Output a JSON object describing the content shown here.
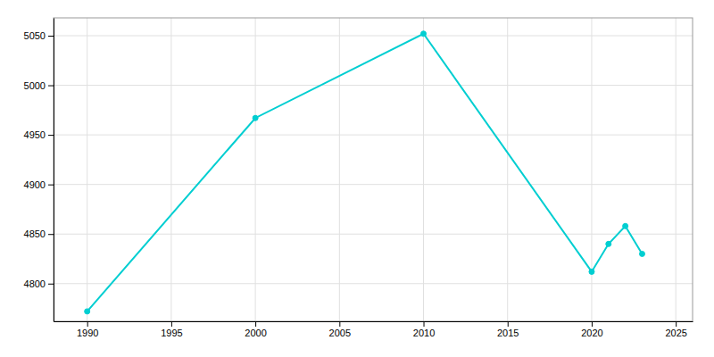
{
  "chart_data": {
    "type": "line",
    "x": [
      1990,
      2000,
      2010,
      2020,
      2021,
      2022,
      2023
    ],
    "values": [
      4772,
      4967,
      5052,
      4812,
      4840,
      4858,
      4830
    ],
    "color": "#00CED1",
    "marker": "circle",
    "xlim": [
      1988,
      2026
    ],
    "xticks": [
      1990,
      1995,
      2000,
      2005,
      2010,
      2015,
      2020,
      2025
    ],
    "ylim": [
      4762,
      5068
    ],
    "yticks": [
      4800,
      4850,
      4900,
      4950,
      5000,
      5050
    ],
    "grid": true
  }
}
